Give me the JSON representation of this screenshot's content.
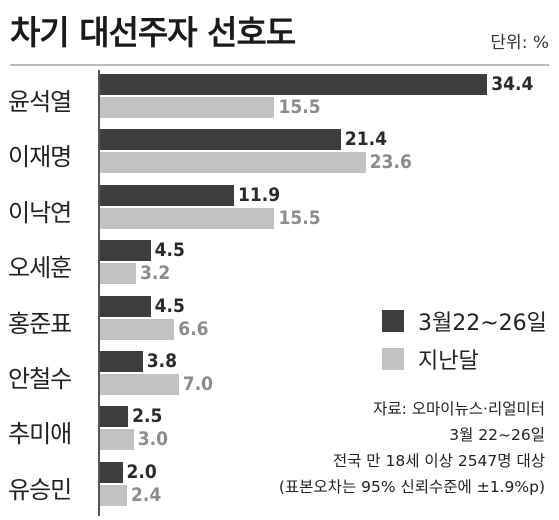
{
  "title": "차기 대선주자 선호도",
  "unit_label": "단위: %",
  "colors": {
    "current": "#3d3d3d",
    "previous": "#c2c2c4",
    "current_text": "#2a2a2a",
    "previous_text": "#8c8c8c"
  },
  "legend": [
    {
      "label": "3월22~26일",
      "color": "#3d3d3d"
    },
    {
      "label": "지난달",
      "color": "#c2c2c4"
    }
  ],
  "notes": [
    "자료: 오마이뉴스·리얼미터",
    "3월 22~26일",
    "전국 만 18세 이상 2547명 대상",
    "(표본오차는 95% 신뢰수준에 ±1.9%p)"
  ],
  "chart_data": {
    "type": "bar",
    "orientation": "horizontal",
    "title": "차기 대선주자 선호도",
    "xlabel": "",
    "ylabel": "",
    "unit": "%",
    "xlim": [
      0,
      35
    ],
    "grid": false,
    "legend_position": "right",
    "categories": [
      "윤석열",
      "이재명",
      "이낙연",
      "오세훈",
      "홍준표",
      "안철수",
      "추미애",
      "유승민"
    ],
    "series": [
      {
        "name": "3월22~26일",
        "values": [
          34.4,
          21.4,
          11.9,
          4.5,
          4.5,
          3.8,
          2.5,
          2.0
        ],
        "labels": [
          "34.4",
          "21.4",
          "11.9",
          "4.5",
          "4.5",
          "3.8",
          "2.5",
          "2.0"
        ]
      },
      {
        "name": "지난달",
        "values": [
          15.5,
          23.6,
          15.5,
          3.2,
          6.6,
          7.0,
          3.0,
          2.4
        ],
        "labels": [
          "15.5",
          "23.6",
          "15.5",
          "3.2",
          "6.6",
          "7.0",
          "3.0",
          "2.4"
        ]
      }
    ]
  }
}
